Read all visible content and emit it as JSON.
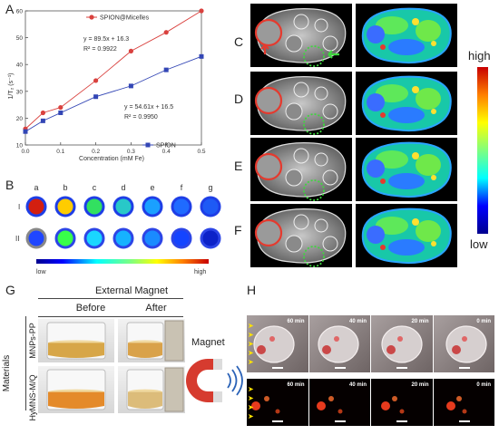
{
  "panels": {
    "A": "A",
    "B": "B",
    "C": "C",
    "D": "D",
    "E": "E",
    "F": "F",
    "G": "G",
    "H": "H"
  },
  "chart_data": {
    "type": "scatter",
    "xlabel": "Concentration (mM Fe)",
    "ylabel": "1/T₂ (s⁻¹)",
    "xlim": [
      0,
      0.5
    ],
    "ylim": [
      10,
      60
    ],
    "xticks": [
      "0.0",
      "0.1",
      "0.2",
      "0.3",
      "0.4",
      "0.5"
    ],
    "yticks": [
      "10",
      "20",
      "30",
      "40",
      "50",
      "60"
    ],
    "series": [
      {
        "name": "SPION@Micelles",
        "color": "#d9413e",
        "marker": "circle",
        "x": [
          0.0,
          0.05,
          0.1,
          0.2,
          0.3,
          0.4,
          0.5
        ],
        "y": [
          16,
          22,
          24,
          34,
          45,
          52,
          60
        ]
      },
      {
        "name": "SPION",
        "color": "#3346b5",
        "marker": "square",
        "x": [
          0.0,
          0.05,
          0.1,
          0.2,
          0.3,
          0.4,
          0.5
        ],
        "y": [
          15,
          19,
          22,
          28,
          32,
          38,
          43
        ]
      }
    ],
    "annotations": [
      {
        "equation": "y = 89.5x + 16.3",
        "r2": "R² = 0.9922"
      },
      {
        "equation": "y = 54.61x + 16.5",
        "r2": "R² = 0.9950"
      }
    ]
  },
  "panel_b": {
    "columns": [
      "a",
      "b",
      "c",
      "d",
      "e",
      "f",
      "g"
    ],
    "rows": [
      "I",
      "II"
    ],
    "scale_low": "low",
    "scale_high": "high"
  },
  "colorbar": {
    "high": "high",
    "low": "low"
  },
  "panel_g": {
    "header": "External Magnet",
    "before": "Before",
    "after": "After",
    "side_label": "Materials",
    "row1": "MNPs-PP",
    "row2": "HyMNS-M/Q"
  },
  "panel_h": {
    "magnet_label": "Magnet",
    "times": [
      "60 min",
      "40 min",
      "20 min",
      "0 min"
    ]
  }
}
